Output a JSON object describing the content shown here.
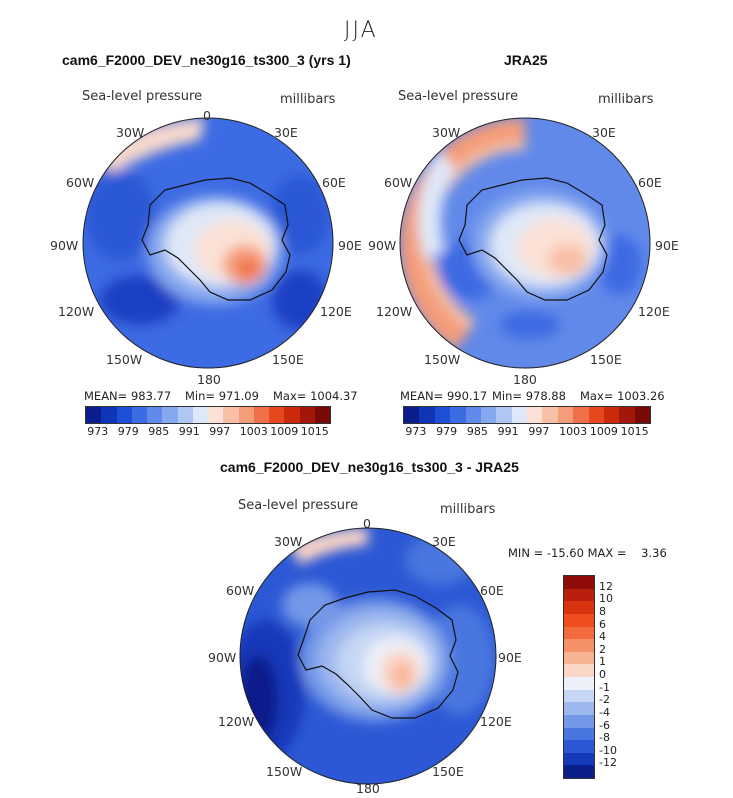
{
  "season": "JJA",
  "panels": [
    {
      "title": "cam6_F2000_DEV_ne30g16_ts300_3 (yrs 1)",
      "variable": "Sea-level pressure",
      "units": "millibars",
      "stats": {
        "mean": "MEAN= 983.77",
        "min": "Min= 971.09",
        "max": "Max= 1004.37"
      }
    },
    {
      "title": "JRA25",
      "variable": "Sea-level pressure",
      "units": "millibars",
      "stats": {
        "mean": "MEAN= 990.17",
        "min": "Min= 978.88",
        "max": "Max= 1003.26"
      }
    },
    {
      "title": "cam6_F2000_DEV_ne30g16_ts300_3 - JRA25",
      "variable": "Sea-level pressure",
      "units": "millibars",
      "stats": {
        "minmax": "MIN = -15.60 MAX =    3.36"
      }
    }
  ],
  "longitude_labels": [
    "0",
    "30E",
    "60E",
    "90E",
    "120E",
    "150E",
    "180",
    "150W",
    "120W",
    "90W",
    "60W",
    "30W"
  ],
  "colorbar_abs": {
    "ticks": [
      "973",
      "979",
      "985",
      "991",
      "997",
      "1003",
      "1009",
      "1015"
    ],
    "colors": [
      "#0b1d8c",
      "#0f35b7",
      "#1f4fd6",
      "#3d6be3",
      "#6189ea",
      "#86a8ef",
      "#b0c7f3",
      "#dfe8f8",
      "#fbe1d6",
      "#f8c0a6",
      "#f59c78",
      "#ef7048",
      "#e8461f",
      "#cc2a0c",
      "#a3160a",
      "#770907"
    ]
  },
  "colorbar_diff": {
    "ticks": [
      "12",
      "10",
      "8",
      "6",
      "4",
      "2",
      "1",
      "0",
      "-1",
      "-2",
      "-4",
      "-6",
      "-8",
      "-10",
      "-12"
    ],
    "colors": [
      "#8e0b07",
      "#b8200d",
      "#d8320f",
      "#ef4d1f",
      "#f36a3c",
      "#f69066",
      "#f8b294",
      "#fbd6c6",
      "#ecf1f9",
      "#c6d6f4",
      "#9db8ef",
      "#7398e8",
      "#4a76df",
      "#2c58d5",
      "#1439b9",
      "#0a1f8a"
    ]
  },
  "chart_data": [
    {
      "type": "heatmap",
      "title": "cam6_F2000_DEV_ne30g16_ts300_3 (yrs 1)",
      "variable": "Sea-level pressure",
      "units": "millibars",
      "projection": "South polar stereographic",
      "mean": 983.77,
      "min": 971.09,
      "max": 1004.37,
      "colorbar_ticks": [
        973,
        979,
        985,
        991,
        997,
        1003,
        1009,
        1015
      ]
    },
    {
      "type": "heatmap",
      "title": "JRA25",
      "variable": "Sea-level pressure",
      "units": "millibars",
      "projection": "South polar stereographic",
      "mean": 990.17,
      "min": 978.88,
      "max": 1003.26,
      "colorbar_ticks": [
        973,
        979,
        985,
        991,
        997,
        1003,
        1009,
        1015
      ]
    },
    {
      "type": "heatmap",
      "title": "cam6_F2000_DEV_ne30g16_ts300_3 - JRA25",
      "variable": "Sea-level pressure",
      "units": "millibars",
      "projection": "South polar stereographic",
      "min": -15.6,
      "max": 3.36,
      "colorbar_ticks": [
        12,
        10,
        8,
        6,
        4,
        2,
        1,
        0,
        -1,
        -2,
        -4,
        -6,
        -8,
        -10,
        -12
      ]
    }
  ]
}
